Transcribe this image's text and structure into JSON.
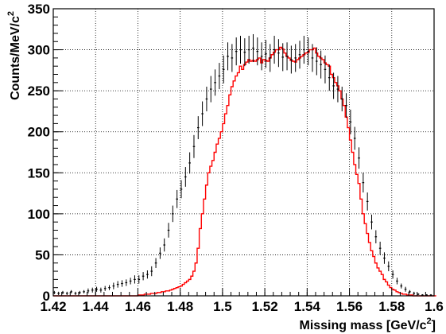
{
  "chart_data": {
    "type": "histogram",
    "xlabel": "Missing mass [GeV/c",
    "xlabel_sup": "2",
    "xlabel_end": "]",
    "ylabel": "Counts/MeV/c",
    "ylabel_sup": "2",
    "xlim": [
      1.42,
      1.6
    ],
    "ylim": [
      0,
      350
    ],
    "x_ticks": [
      "1.42",
      "1.44",
      "1.46",
      "1.48",
      "1.5",
      "1.52",
      "1.54",
      "1.56",
      "1.58",
      "1.6"
    ],
    "y_ticks": [
      "0",
      "50",
      "100",
      "150",
      "200",
      "250",
      "300",
      "350"
    ],
    "grid": true,
    "bin_width": 0.001,
    "series": [
      {
        "kind": "data-points-with-error-bars",
        "color": "#000000",
        "x": [
          1.4205,
          1.4225,
          1.4245,
          1.4265,
          1.4285,
          1.4305,
          1.4325,
          1.4345,
          1.4365,
          1.4385,
          1.4405,
          1.4425,
          1.4445,
          1.4465,
          1.4485,
          1.4505,
          1.4525,
          1.4545,
          1.4565,
          1.4585,
          1.4605,
          1.4625,
          1.4645,
          1.4665,
          1.4685,
          1.4705,
          1.4725,
          1.4745,
          1.4765,
          1.4785,
          1.4805,
          1.4825,
          1.4845,
          1.4865,
          1.4885,
          1.4905,
          1.4925,
          1.4945,
          1.4965,
          1.4985,
          1.5005,
          1.5025,
          1.5045,
          1.5065,
          1.5085,
          1.5105,
          1.5125,
          1.5145,
          1.5165,
          1.5185,
          1.5205,
          1.5225,
          1.5245,
          1.5265,
          1.5285,
          1.5305,
          1.5325,
          1.5345,
          1.5365,
          1.5385,
          1.5405,
          1.5425,
          1.5445,
          1.5465,
          1.5485,
          1.5505,
          1.5525,
          1.5545,
          1.5565,
          1.5585,
          1.5605,
          1.5625,
          1.5645,
          1.5665,
          1.5685,
          1.5705,
          1.5725,
          1.5745,
          1.5765,
          1.5785,
          1.5805,
          1.5825,
          1.5845,
          1.5865,
          1.5885,
          1.5905,
          1.5925,
          1.5945,
          1.5965,
          1.5985
        ],
        "y": [
          4,
          3,
          4,
          3,
          5,
          3,
          4,
          5,
          6,
          7,
          8,
          7,
          9,
          10,
          12,
          14,
          15,
          16,
          18,
          20,
          20,
          24,
          26,
          30,
          40,
          52,
          62,
          80,
          100,
          118,
          130,
          145,
          162,
          182,
          205,
          222,
          240,
          252,
          260,
          268,
          276,
          292,
          290,
          298,
          300,
          297,
          300,
          302,
          298,
          292,
          295,
          290,
          300,
          296,
          291,
          292,
          288,
          290,
          294,
          300,
          298,
          290,
          286,
          282,
          276,
          266,
          256,
          252,
          240,
          232,
          212,
          192,
          168,
          138,
          115,
          90,
          72,
          58,
          46,
          36,
          26,
          18,
          12,
          8,
          5,
          3,
          2,
          1,
          1,
          1
        ],
        "errors": [
          2,
          2,
          2,
          2,
          2,
          2,
          2,
          2,
          3,
          3,
          3,
          3,
          3,
          3,
          4,
          4,
          4,
          4,
          4,
          5,
          5,
          5,
          5,
          6,
          6,
          7,
          8,
          9,
          10,
          11,
          11,
          12,
          13,
          14,
          14,
          15,
          15,
          16,
          16,
          16,
          17,
          17,
          17,
          17,
          17,
          17,
          17,
          17,
          17,
          17,
          17,
          17,
          17,
          17,
          17,
          17,
          17,
          17,
          17,
          17,
          17,
          17,
          17,
          17,
          17,
          16,
          16,
          16,
          15,
          15,
          15,
          14,
          13,
          12,
          11,
          9,
          8,
          8,
          7,
          6,
          5,
          4,
          3,
          3,
          2,
          2,
          1,
          1,
          1,
          1
        ]
      },
      {
        "kind": "simulation-histogram",
        "color": "#ff0000",
        "bin_edges_start": 1.42,
        "values": [
          0,
          0,
          0,
          0,
          0,
          0,
          0,
          0,
          0,
          0,
          0,
          0,
          0,
          0,
          0,
          0,
          0,
          0,
          0,
          0,
          0,
          0,
          0,
          0,
          0,
          0,
          0,
          0,
          0,
          0,
          0,
          0,
          0,
          0,
          0,
          0,
          0,
          0,
          0,
          0,
          1,
          1,
          1,
          2,
          2,
          2,
          3,
          3,
          3,
          4,
          4,
          5,
          5,
          6,
          6,
          7,
          8,
          9,
          10,
          11,
          12,
          14,
          16,
          18,
          20,
          24,
          30,
          40,
          58,
          82,
          100,
          118,
          135,
          150,
          158,
          165,
          175,
          185,
          192,
          200,
          210,
          222,
          232,
          245,
          255,
          262,
          268,
          272,
          280,
          276,
          282,
          285,
          288,
          286,
          287,
          286,
          288,
          290,
          284,
          288,
          287,
          286,
          290,
          294,
          297,
          300,
          300,
          303,
          301,
          296,
          292,
          290,
          287,
          286,
          285,
          288,
          290,
          292,
          294,
          296,
          297,
          300,
          300,
          302,
          296,
          292,
          290,
          288,
          284,
          282,
          280,
          270,
          266,
          260,
          256,
          250,
          240,
          232,
          218,
          205,
          190,
          175,
          160,
          148,
          137,
          118,
          100,
          88,
          76,
          65,
          55,
          48,
          40,
          34,
          30,
          26,
          20,
          17,
          13,
          10,
          8,
          7,
          5,
          4,
          3,
          2,
          2,
          1,
          1,
          1,
          0,
          0,
          0,
          0,
          0,
          0,
          0,
          0,
          0,
          0,
          0
        ]
      }
    ]
  }
}
